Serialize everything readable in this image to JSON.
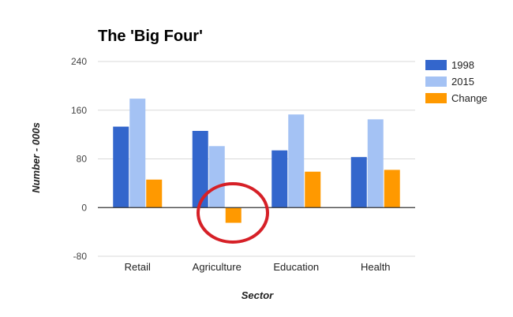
{
  "colors": {
    "background": "#ffffff",
    "grid": "#d9d9d9",
    "zero_line": "#333333",
    "annotation": "#d62027"
  },
  "chart_data": {
    "type": "bar",
    "title": "The 'Big Four'",
    "xlabel": "Sector",
    "ylabel": "Number - 000s",
    "categories": [
      "Retail",
      "Agriculture",
      "Education",
      "Health"
    ],
    "series": [
      {
        "name": "1998",
        "color": "#3366cc",
        "values": [
          133,
          126,
          94,
          83
        ]
      },
      {
        "name": "2015",
        "color": "#a4c2f4",
        "values": [
          179,
          101,
          153,
          145
        ]
      },
      {
        "name": "Change",
        "color": "#ff9900",
        "values": [
          46,
          -25,
          59,
          62
        ]
      }
    ],
    "ylim": [
      -80,
      240
    ],
    "yticks": [
      -80,
      0,
      80,
      160,
      240
    ],
    "grid": true,
    "legend_position": "right",
    "annotation": {
      "shape": "circle",
      "highlights": "Agriculture Change"
    }
  }
}
